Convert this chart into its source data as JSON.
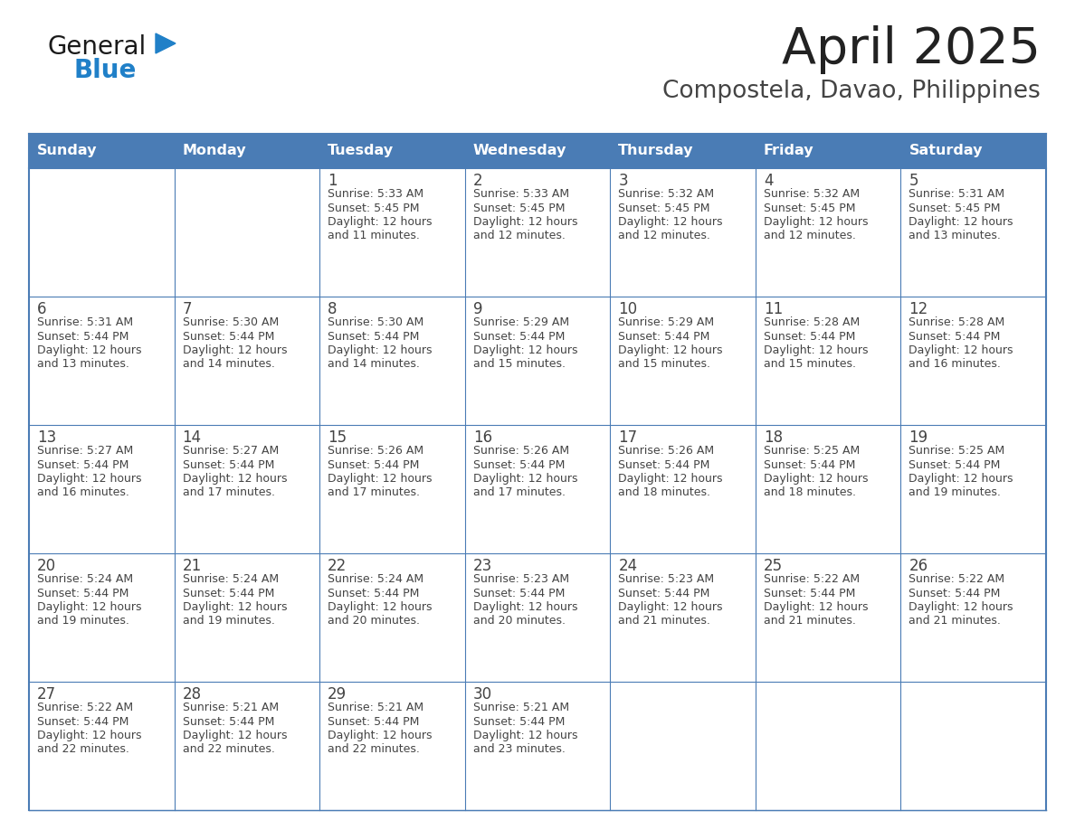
{
  "title": "April 2025",
  "subtitle": "Compostela, Davao, Philippines",
  "days_of_week": [
    "Sunday",
    "Monday",
    "Tuesday",
    "Wednesday",
    "Thursday",
    "Friday",
    "Saturday"
  ],
  "header_bg": "#4a7cb5",
  "header_text": "#ffffff",
  "border_color": "#4a7cb5",
  "text_color": "#444444",
  "title_color": "#222222",
  "subtitle_color": "#444444",
  "calendar_data": [
    [
      {
        "day": "",
        "sunrise": "",
        "sunset": "",
        "daylight": ""
      },
      {
        "day": "",
        "sunrise": "",
        "sunset": "",
        "daylight": ""
      },
      {
        "day": "1",
        "sunrise": "5:33 AM",
        "sunset": "5:45 PM",
        "daylight": "12 hours and 11 minutes."
      },
      {
        "day": "2",
        "sunrise": "5:33 AM",
        "sunset": "5:45 PM",
        "daylight": "12 hours and 12 minutes."
      },
      {
        "day": "3",
        "sunrise": "5:32 AM",
        "sunset": "5:45 PM",
        "daylight": "12 hours and 12 minutes."
      },
      {
        "day": "4",
        "sunrise": "5:32 AM",
        "sunset": "5:45 PM",
        "daylight": "12 hours and 12 minutes."
      },
      {
        "day": "5",
        "sunrise": "5:31 AM",
        "sunset": "5:45 PM",
        "daylight": "12 hours and 13 minutes."
      }
    ],
    [
      {
        "day": "6",
        "sunrise": "5:31 AM",
        "sunset": "5:44 PM",
        "daylight": "12 hours and 13 minutes."
      },
      {
        "day": "7",
        "sunrise": "5:30 AM",
        "sunset": "5:44 PM",
        "daylight": "12 hours and 14 minutes."
      },
      {
        "day": "8",
        "sunrise": "5:30 AM",
        "sunset": "5:44 PM",
        "daylight": "12 hours and 14 minutes."
      },
      {
        "day": "9",
        "sunrise": "5:29 AM",
        "sunset": "5:44 PM",
        "daylight": "12 hours and 15 minutes."
      },
      {
        "day": "10",
        "sunrise": "5:29 AM",
        "sunset": "5:44 PM",
        "daylight": "12 hours and 15 minutes."
      },
      {
        "day": "11",
        "sunrise": "5:28 AM",
        "sunset": "5:44 PM",
        "daylight": "12 hours and 15 minutes."
      },
      {
        "day": "12",
        "sunrise": "5:28 AM",
        "sunset": "5:44 PM",
        "daylight": "12 hours and 16 minutes."
      }
    ],
    [
      {
        "day": "13",
        "sunrise": "5:27 AM",
        "sunset": "5:44 PM",
        "daylight": "12 hours and 16 minutes."
      },
      {
        "day": "14",
        "sunrise": "5:27 AM",
        "sunset": "5:44 PM",
        "daylight": "12 hours and 17 minutes."
      },
      {
        "day": "15",
        "sunrise": "5:26 AM",
        "sunset": "5:44 PM",
        "daylight": "12 hours and 17 minutes."
      },
      {
        "day": "16",
        "sunrise": "5:26 AM",
        "sunset": "5:44 PM",
        "daylight": "12 hours and 17 minutes."
      },
      {
        "day": "17",
        "sunrise": "5:26 AM",
        "sunset": "5:44 PM",
        "daylight": "12 hours and 18 minutes."
      },
      {
        "day": "18",
        "sunrise": "5:25 AM",
        "sunset": "5:44 PM",
        "daylight": "12 hours and 18 minutes."
      },
      {
        "day": "19",
        "sunrise": "5:25 AM",
        "sunset": "5:44 PM",
        "daylight": "12 hours and 19 minutes."
      }
    ],
    [
      {
        "day": "20",
        "sunrise": "5:24 AM",
        "sunset": "5:44 PM",
        "daylight": "12 hours and 19 minutes."
      },
      {
        "day": "21",
        "sunrise": "5:24 AM",
        "sunset": "5:44 PM",
        "daylight": "12 hours and 19 minutes."
      },
      {
        "day": "22",
        "sunrise": "5:24 AM",
        "sunset": "5:44 PM",
        "daylight": "12 hours and 20 minutes."
      },
      {
        "day": "23",
        "sunrise": "5:23 AM",
        "sunset": "5:44 PM",
        "daylight": "12 hours and 20 minutes."
      },
      {
        "day": "24",
        "sunrise": "5:23 AM",
        "sunset": "5:44 PM",
        "daylight": "12 hours and 21 minutes."
      },
      {
        "day": "25",
        "sunrise": "5:22 AM",
        "sunset": "5:44 PM",
        "daylight": "12 hours and 21 minutes."
      },
      {
        "day": "26",
        "sunrise": "5:22 AM",
        "sunset": "5:44 PM",
        "daylight": "12 hours and 21 minutes."
      }
    ],
    [
      {
        "day": "27",
        "sunrise": "5:22 AM",
        "sunset": "5:44 PM",
        "daylight": "12 hours and 22 minutes."
      },
      {
        "day": "28",
        "sunrise": "5:21 AM",
        "sunset": "5:44 PM",
        "daylight": "12 hours and 22 minutes."
      },
      {
        "day": "29",
        "sunrise": "5:21 AM",
        "sunset": "5:44 PM",
        "daylight": "12 hours and 22 minutes."
      },
      {
        "day": "30",
        "sunrise": "5:21 AM",
        "sunset": "5:44 PM",
        "daylight": "12 hours and 23 minutes."
      },
      {
        "day": "",
        "sunrise": "",
        "sunset": "",
        "daylight": ""
      },
      {
        "day": "",
        "sunrise": "",
        "sunset": "",
        "daylight": ""
      },
      {
        "day": "",
        "sunrise": "",
        "sunset": "",
        "daylight": ""
      }
    ]
  ],
  "logo_color_general": "#1a1a1a",
  "logo_color_blue": "#2080c8",
  "logo_triangle_color": "#2080c8",
  "fig_width": 11.88,
  "fig_height": 9.18,
  "dpi": 100
}
